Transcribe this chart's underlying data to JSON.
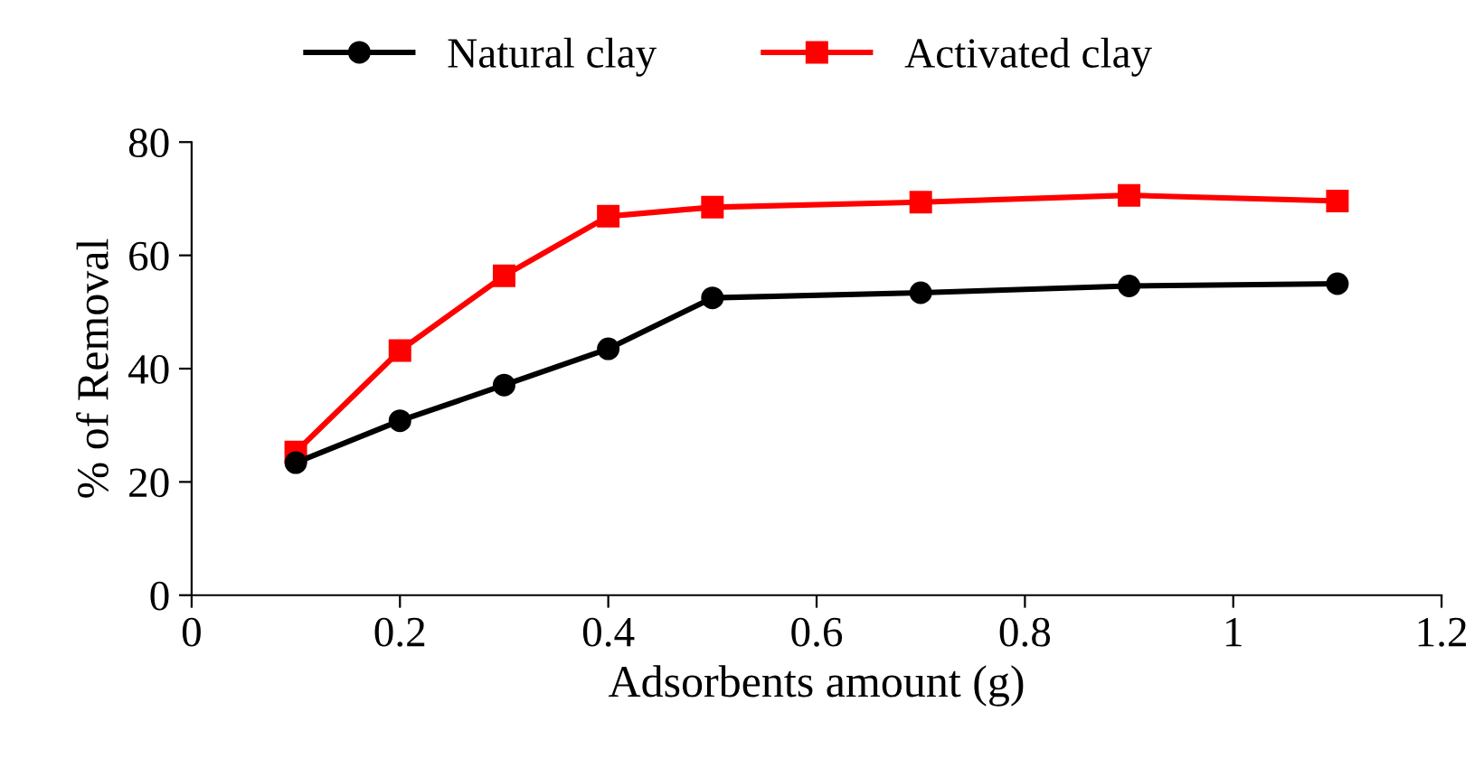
{
  "chart_data": {
    "type": "line",
    "xlabel": "Adsorbents amount (g)",
    "ylabel": "% of Removal",
    "x": [
      0.1,
      0.2,
      0.3,
      0.4,
      0.5,
      0.7,
      0.9,
      1.1
    ],
    "series": [
      {
        "name": "Natural clay",
        "color": "#000000",
        "marker": "circle",
        "values": [
          23.4,
          30.8,
          37.1,
          43.5,
          52.5,
          53.4,
          54.6,
          55.0
        ]
      },
      {
        "name": "Activated clay",
        "color": "#ff0000",
        "marker": "square",
        "values": [
          25.3,
          43.2,
          56.4,
          66.9,
          68.5,
          69.4,
          70.6,
          69.6
        ]
      }
    ],
    "xlim": [
      0,
      1.2
    ],
    "xticks": [
      0,
      0.2,
      0.4,
      0.6,
      0.8,
      1,
      1.2
    ],
    "ylim": [
      0,
      80
    ],
    "yticks": [
      0,
      20,
      40,
      60,
      80
    ],
    "grid": false,
    "legend": "top",
    "line_style": "solid"
  }
}
